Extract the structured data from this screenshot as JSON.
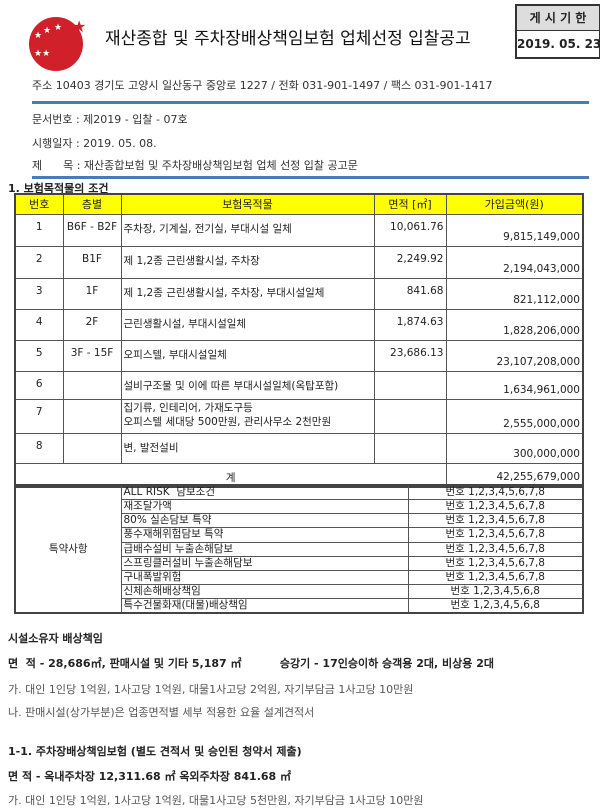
{
  "header": {
    "title": "재산종합 및 주차장배상책임보험 업체선정 입찰공고",
    "period_label": "게 시 기 한",
    "period_date": "2019. 05. 23",
    "logo_color": "#d0202a"
  },
  "address": "주소 10403 경기도 고양시 일산동구 중앙로 1227 / 전화 031-901-1497 / 팩스 031-901-1417",
  "doc_no": "문서번호 : 제2019 - 입찰 - 07호",
  "date": "시행일자 : 2019. 05. 08.",
  "subject": "제      목 : 재산종합보험 및 주차장배상책임보험 업체 선정 입찰 공고문",
  "section1": "1. 보험목적물의 조건",
  "table": {
    "headers": [
      "번호",
      "층별",
      "보험목적물",
      "면적 [㎡]",
      "가입금액(원)"
    ],
    "rows": [
      {
        "no": "1",
        "floor": "B6F - B2F",
        "item": "주차장, 기계실, 전기실, 부대시설 일체",
        "area": "10,061.76",
        "amount": "9,815,149,000"
      },
      {
        "no": "2",
        "floor": "B1F",
        "item": "제 1,2종 근린생활시설, 주차장",
        "area": "2,249.92",
        "amount": "2,194,043,000"
      },
      {
        "no": "3",
        "floor": "1F",
        "item": "제 1,2종 근린생활시설, 주차장, 부대시설일체",
        "area": "841.68",
        "amount": "821,112,000"
      },
      {
        "no": "4",
        "floor": "2F",
        "item": "근린생활시설, 부대시설일체",
        "area": "1,874.63",
        "amount": "1,828,206,000"
      },
      {
        "no": "5",
        "floor": "3F - 15F",
        "item": "오피스텔, 부대시설일체",
        "area": "23,686.13",
        "amount": "23,107,208,000"
      },
      {
        "no": "6",
        "floor": "",
        "item": "설비구조물 및 이에 따른 부대시설일체(옥탑포함)",
        "area": "",
        "amount": "1,634,961,000"
      },
      {
        "no": "7",
        "floor": "",
        "item": "집기류, 인테리어, 가재도구등",
        "item2": "오피스텔 세대당 500만원, 관리사무소 2천만원",
        "area": "",
        "amount": "2,555,000,000"
      },
      {
        "no": "8",
        "floor": "",
        "item": "변, 발전설비",
        "area": "",
        "amount": "300,000,000"
      }
    ],
    "total_label": "계",
    "total": "42,255,679,000"
  },
  "special": {
    "label": "특약사항",
    "rows": [
      {
        "item": "ALL RISK  담보조건",
        "nos": "번호 1,2,3,4,5,6,7,8"
      },
      {
        "item": "재조달가액",
        "nos": "번호 1,2,3,4,5,6,7,8"
      },
      {
        "item": "80% 실손담보 특약",
        "nos": "번호 1,2,3,4,5,6,7,8"
      },
      {
        "item": "풍수재해위험담보 특약",
        "nos": "번호 1,2,3,4,5,6,7,8"
      },
      {
        "item": "급배수설비 누출손해담보",
        "nos": "번호 1,2,3,4,5,6,7,8"
      },
      {
        "item": "스프링클러설비 누출손해담보",
        "nos": "번호 1,2,3,4,5,6,7,8"
      },
      {
        "item": "구내폭발위험",
        "nos": "번호 1,2,3,4,5,6,7,8"
      },
      {
        "item": "신체손해배상책임",
        "nos": "번호 1,2,3,4,5,6,8"
      },
      {
        "item": "특수건물화재(대물)배상책임",
        "nos": "번호 1,2,3,4,5,6,8"
      }
    ]
  },
  "liability": {
    "title": "시설소유자 배상책임",
    "area": "면  적 - 28,686㎡, 판매시설 및 기타 5,187 ㎡          승강기 - 17인승이하 승객용 2대, 비상용 2대",
    "a": "가. 대인 1인당 1억원, 1사고당 1억원, 대물1사고당 2억원, 자기부담금 1사고당 10만원",
    "b": "나. 판매시설(상가부분)은 업종면적별 세부 적용한 요율 설계견적서"
  },
  "parking": {
    "title": "1-1. 주차장배상책임보험 (별도 견적서 및 승인된 청약서 제출)",
    "area": "면  적 - 옥내주차장 12,311.68 ㎡  옥외주차장 841.68 ㎡",
    "a": "가. 대인 1인당 1억원, 1사고당 1억원, 대물1사고당 5천만원, 자기부담금 1사고당 10만원"
  }
}
